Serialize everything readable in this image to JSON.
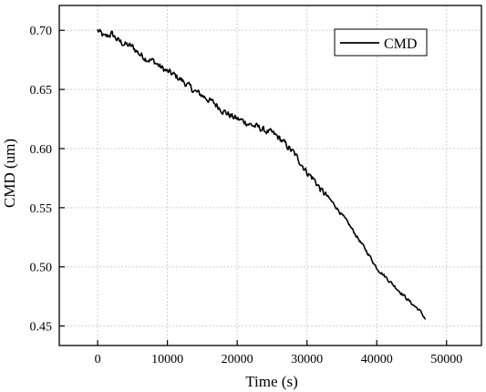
{
  "chart_data": {
    "type": "line",
    "xlabel": "Time (s)",
    "ylabel": "CMD (um)",
    "xlim": [
      -5500,
      55000
    ],
    "ylim": [
      0.4335,
      0.721
    ],
    "x_ticks": [
      0,
      10000,
      20000,
      30000,
      40000,
      50000
    ],
    "y_ticks": [
      0.45,
      0.5,
      0.55,
      0.6,
      0.65,
      0.7
    ],
    "x_tick_labels": [
      "0",
      "10000",
      "20000",
      "30000",
      "40000",
      "50000"
    ],
    "y_tick_labels": [
      "0.45",
      "0.50",
      "0.55",
      "0.60",
      "0.65",
      "0.70"
    ],
    "grid": true,
    "legend_position": "top-right",
    "series": [
      {
        "name": "CMD",
        "color": "#000000",
        "x": [
          0,
          1000,
          2000,
          3000,
          4000,
          5000,
          6000,
          7000,
          8000,
          9000,
          10000,
          11000,
          12000,
          13000,
          14000,
          15000,
          16000,
          17000,
          18000,
          19000,
          20000,
          21000,
          22000,
          23000,
          24000,
          25000,
          26000,
          27000,
          28000,
          29000,
          30000,
          31000,
          32000,
          33000,
          34000,
          35000,
          36000,
          37000,
          38000,
          39000,
          40000,
          41000,
          42000,
          43000,
          44000,
          45000,
          46000,
          47000
        ],
        "y": [
          0.7,
          0.694,
          0.697,
          0.691,
          0.688,
          0.686,
          0.68,
          0.676,
          0.674,
          0.669,
          0.665,
          0.662,
          0.658,
          0.653,
          0.648,
          0.645,
          0.641,
          0.637,
          0.632,
          0.628,
          0.625,
          0.623,
          0.62,
          0.618,
          0.615,
          0.613,
          0.609,
          0.603,
          0.597,
          0.589,
          0.58,
          0.574,
          0.565,
          0.559,
          0.552,
          0.544,
          0.536,
          0.527,
          0.518,
          0.509,
          0.499,
          0.493,
          0.487,
          0.481,
          0.475,
          0.469,
          0.464,
          0.456
        ]
      }
    ]
  }
}
